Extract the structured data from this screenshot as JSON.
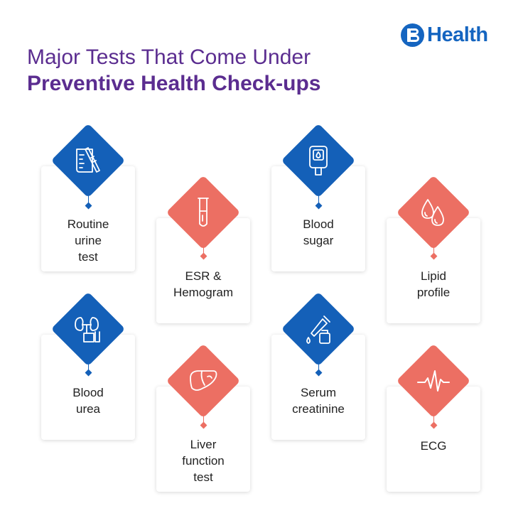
{
  "brand": {
    "name": "Health"
  },
  "title": {
    "line1": "Major Tests That Come Under",
    "line2": "Preventive Health Check-ups"
  },
  "colors": {
    "blue": "#1460b8",
    "coral": "#ec6f63",
    "title": "#5b2d90"
  },
  "tests": [
    {
      "label": "Routine\nurine\ntest",
      "icon": "beaker-test-strip-icon",
      "color": "blue"
    },
    {
      "label": "ESR &\nHemogram",
      "icon": "test-tube-icon",
      "color": "coral"
    },
    {
      "label": "Blood\nsugar",
      "icon": "glucometer-icon",
      "color": "blue"
    },
    {
      "label": "Lipid\nprofile",
      "icon": "blood-drops-icon",
      "color": "coral"
    },
    {
      "label": "Blood\nurea",
      "icon": "kidney-lab-icon",
      "color": "blue"
    },
    {
      "label": "Liver\nfunction\ntest",
      "icon": "liver-icon",
      "color": "coral"
    },
    {
      "label": "Serum\ncreatinine",
      "icon": "dropper-bottle-icon",
      "color": "blue"
    },
    {
      "label": "ECG",
      "icon": "heartbeat-icon",
      "color": "coral"
    }
  ]
}
